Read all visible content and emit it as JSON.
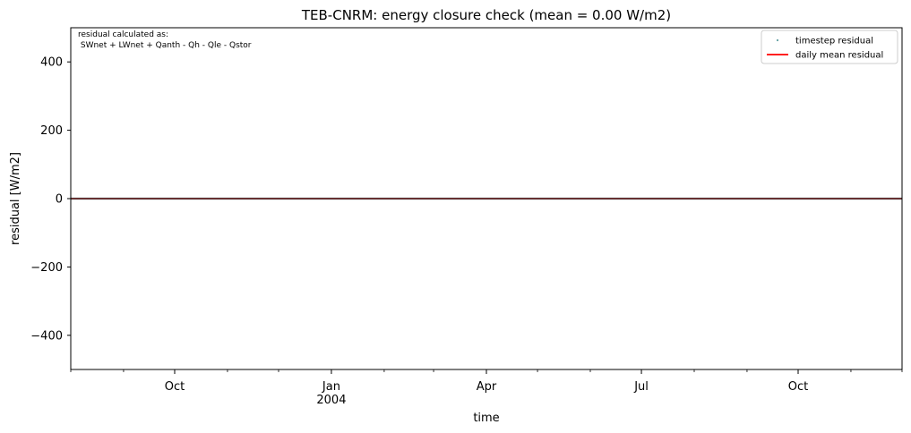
{
  "chart_data": {
    "type": "line",
    "title": "TEB-CNRM: energy closure check (mean = 0.00 W/m2)",
    "xlabel": "time",
    "ylabel": "residual [W/m2]",
    "xlim": [
      "2003-08-01",
      "2004-12-01"
    ],
    "ylim": [
      -500,
      500
    ],
    "y_ticks": [
      -400,
      -200,
      0,
      200,
      400
    ],
    "y_tick_labels": [
      "−400",
      "−200",
      "0",
      "200",
      "400"
    ],
    "x_ticks": [
      {
        "date": "2003-10-01",
        "label": "Oct",
        "sublabel": ""
      },
      {
        "date": "2004-01-01",
        "label": "Jan",
        "sublabel": "2004"
      },
      {
        "date": "2004-04-01",
        "label": "Apr",
        "sublabel": ""
      },
      {
        "date": "2004-07-01",
        "label": "Jul",
        "sublabel": ""
      },
      {
        "date": "2004-10-01",
        "label": "Oct",
        "sublabel": ""
      }
    ],
    "x_minor_ticks": [
      "2003-08-01",
      "2003-09-01",
      "2003-11-01",
      "2003-12-01",
      "2004-02-01",
      "2004-03-01",
      "2004-05-01",
      "2004-06-01",
      "2004-08-01",
      "2004-09-01",
      "2004-11-01",
      "2004-12-01"
    ],
    "annotation": [
      "residual calculated as:",
      " SWnet + LWnet + Qanth - Qh - Qle - Qstor"
    ],
    "legend": {
      "position": "top-right",
      "entries": [
        "timestep residual",
        "daily mean residual"
      ]
    },
    "series": [
      {
        "name": "timestep residual",
        "style": "points",
        "color": "#5f9ea0",
        "x": [
          "2003-08-01",
          "2004-12-01"
        ],
        "y": [
          0,
          0
        ]
      },
      {
        "name": "daily mean residual",
        "style": "line",
        "color": "#ff0000",
        "x": [
          "2003-08-01",
          "2004-12-01"
        ],
        "y": [
          0,
          0
        ]
      }
    ],
    "zero_line": {
      "y": 0,
      "color": "#000000"
    },
    "grid": false
  }
}
